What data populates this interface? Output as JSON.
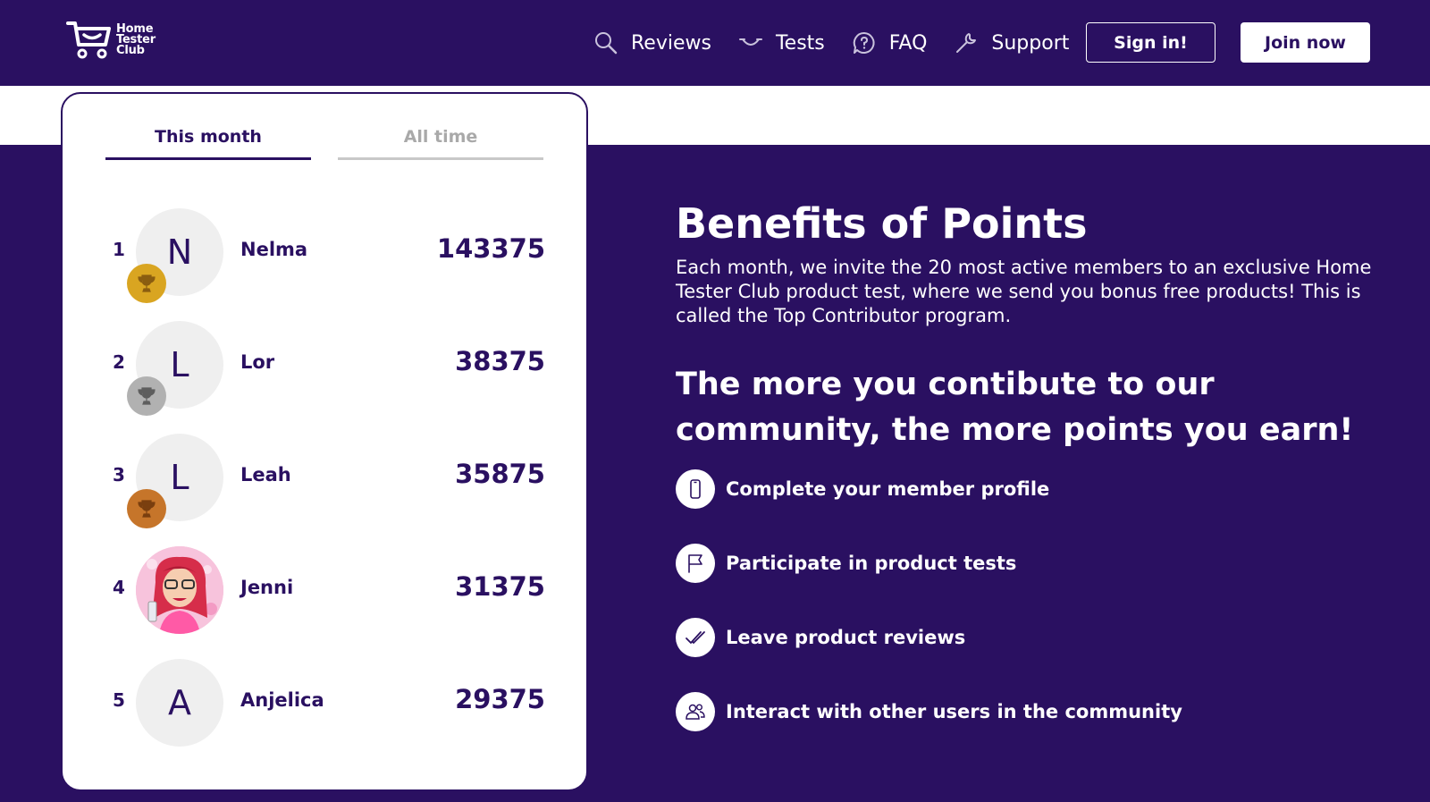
{
  "colors": {
    "brand": "#2a1061",
    "gold": "#d9a521",
    "silver": "#b1b1b1",
    "bronze": "#c6752a"
  },
  "logo": {
    "line1": "Home",
    "line2": "Tester",
    "line3": "Club"
  },
  "nav": {
    "items": [
      {
        "label": "Reviews",
        "icon": "search-icon"
      },
      {
        "label": "Tests",
        "icon": "smile-icon"
      },
      {
        "label": "FAQ",
        "icon": "question-bubble-icon"
      },
      {
        "label": "Support",
        "icon": "wrench-icon"
      }
    ],
    "signin_label": "Sign in!",
    "join_label": "Join now"
  },
  "leaderboard": {
    "tabs": [
      {
        "label": "This month",
        "active": true
      },
      {
        "label": "All time",
        "active": false
      }
    ],
    "rows": [
      {
        "rank": "1",
        "initial": "N",
        "name": "Nelma",
        "points": "143375",
        "trophy": "gold"
      },
      {
        "rank": "2",
        "initial": "L",
        "name": "Lor",
        "points": "38375",
        "trophy": "silver"
      },
      {
        "rank": "3",
        "initial": "L",
        "name": "Leah",
        "points": "35875",
        "trophy": "bronze"
      },
      {
        "rank": "4",
        "initial": "",
        "name": "Jenni",
        "points": "31375",
        "trophy": "none"
      },
      {
        "rank": "5",
        "initial": "A",
        "name": "Anjelica",
        "points": "29375",
        "trophy": "none"
      }
    ]
  },
  "benefits": {
    "title": "Benefits of Points",
    "intro": "Each month, we invite the 20 most active members to an exclusive Home Tester Club product test, where we send you bonus free products! This is called the Top Contributor program.",
    "subtitle": "The more you contibute to our community, the more points you earn!",
    "items": [
      {
        "label": "Complete your member profile",
        "icon": "phone-icon"
      },
      {
        "label": "Participate in product tests",
        "icon": "flag-icon"
      },
      {
        "label": "Leave product reviews",
        "icon": "double-check-icon"
      },
      {
        "label": "Interact with other users in the community",
        "icon": "users-icon"
      }
    ]
  }
}
